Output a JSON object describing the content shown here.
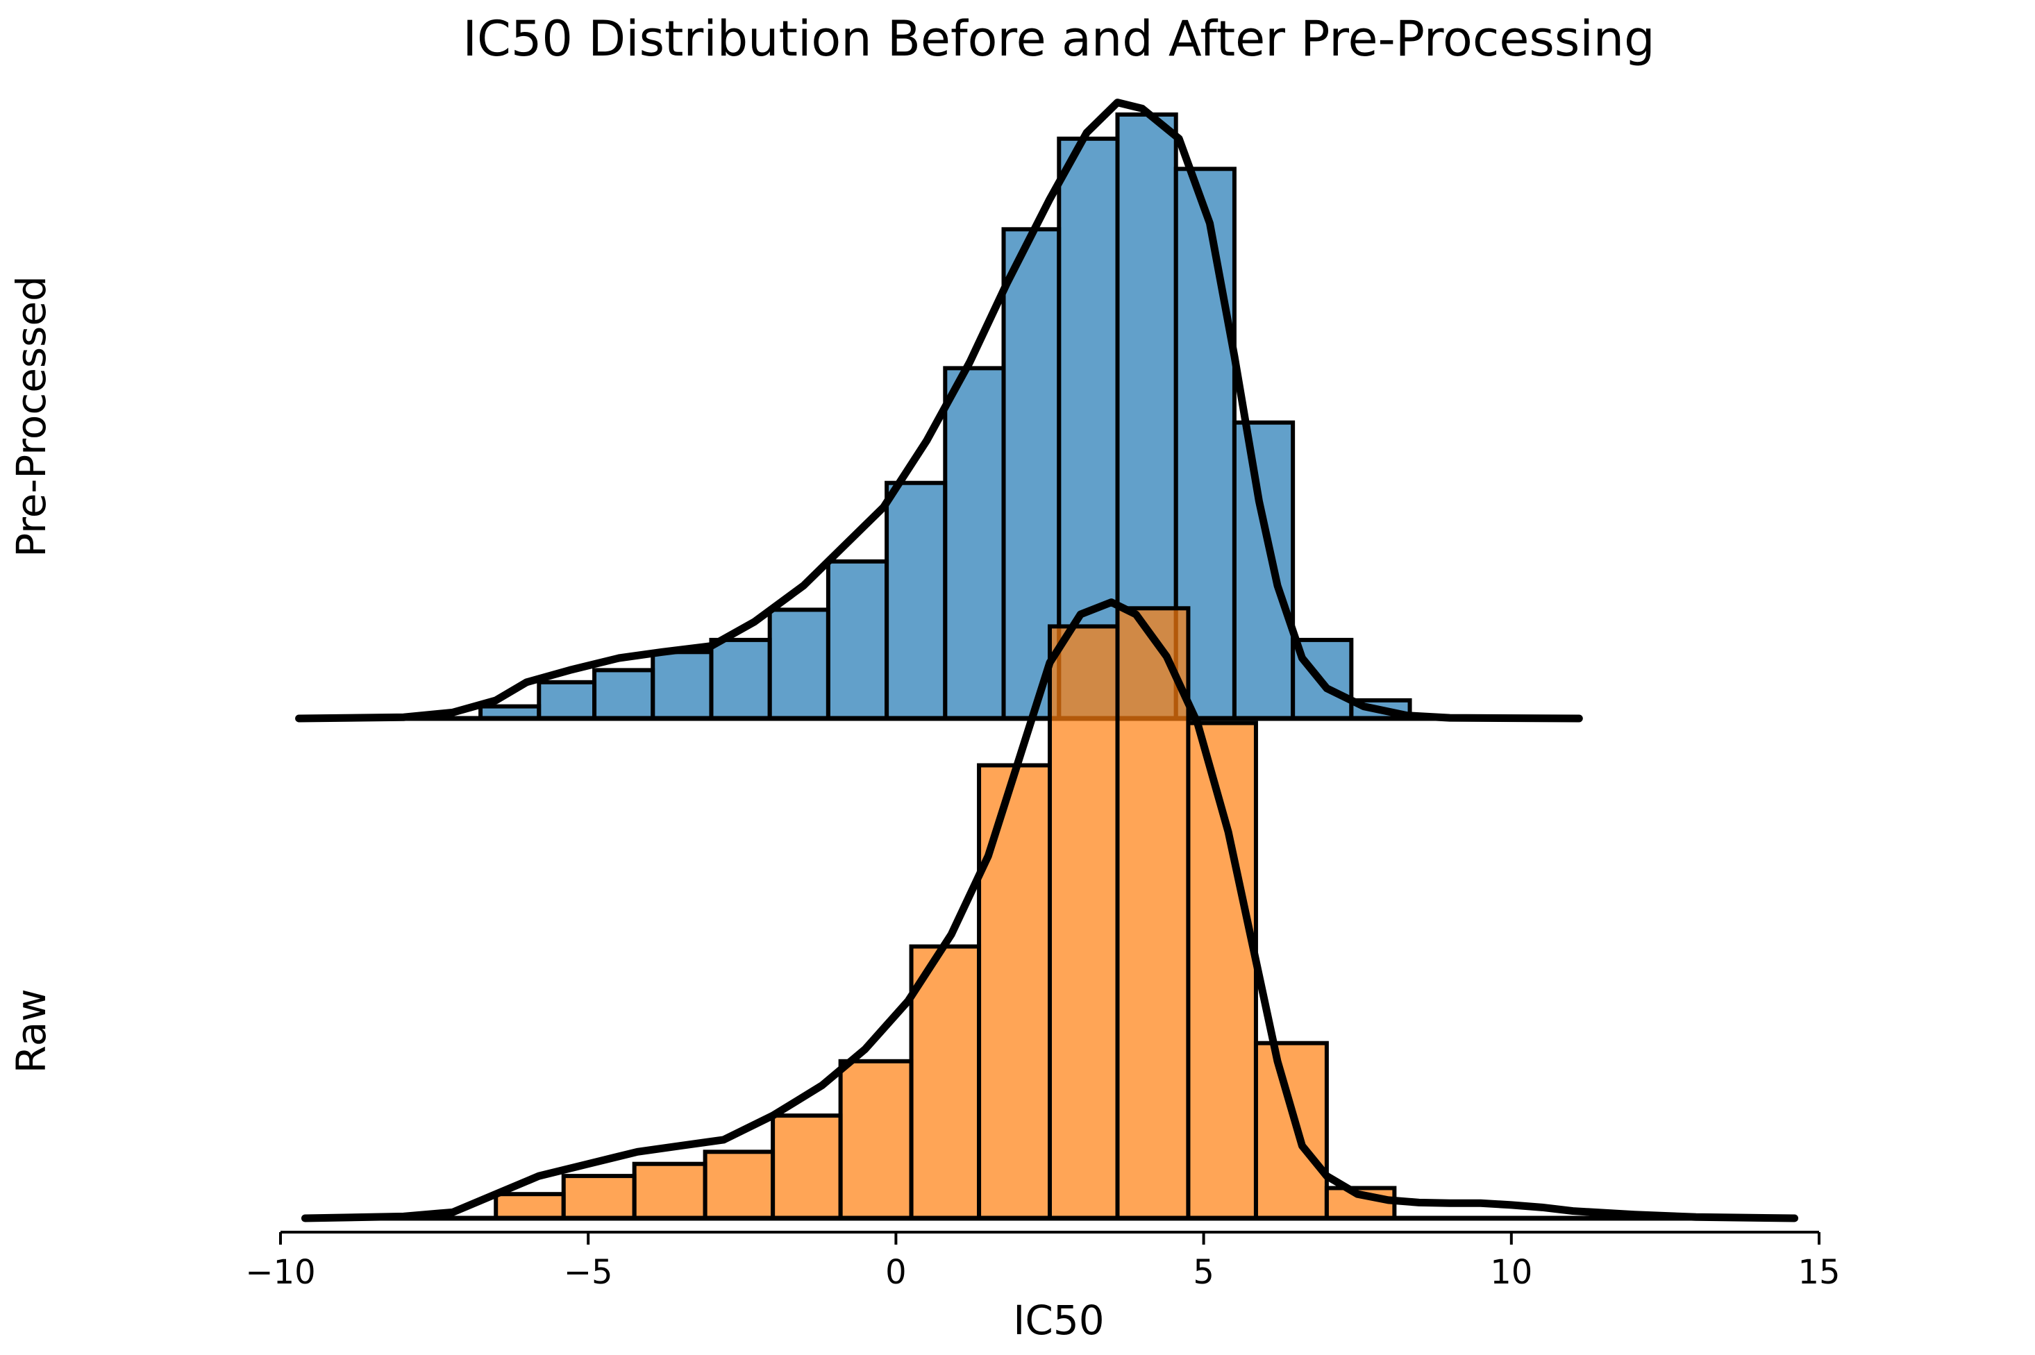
{
  "chart_data": {
    "type": "bar",
    "subtype": "ridgeline histogram with KDE",
    "title": "IC50 Distribution Before and After Pre-Processing",
    "xlabel": "IC50",
    "xlim": [
      -10,
      15
    ],
    "xticks": [
      -10,
      -5,
      0,
      5,
      10,
      15
    ],
    "xtick_labels": [
      "−10",
      "−5",
      "0",
      "5",
      "10",
      "15"
    ],
    "grid": false,
    "legend": "none",
    "ridge_overlap": 0.18,
    "series": [
      {
        "name": "Pre-Processed",
        "color": "#1f77b4",
        "bar_edges": [
          -6.75,
          -5.8,
          -4.9,
          -3.95,
          -3.0,
          -2.05,
          -1.1,
          -0.15,
          0.8,
          1.75,
          2.65,
          3.6,
          4.55,
          5.5,
          6.45,
          7.4,
          8.35
        ],
        "bar_values": [
          0.02,
          0.06,
          0.08,
          0.11,
          0.13,
          0.18,
          0.26,
          0.39,
          0.58,
          0.81,
          0.96,
          1.0,
          0.91,
          0.49,
          0.13,
          0.03
        ],
        "kde_x": [
          -9.7,
          -8.0,
          -7.2,
          -6.5,
          -6.0,
          -5.3,
          -4.5,
          -3.8,
          -3.0,
          -2.3,
          -1.5,
          -0.8,
          -0.2,
          0.5,
          1.2,
          1.8,
          2.5,
          3.1,
          3.6,
          4.0,
          4.6,
          5.1,
          5.5,
          5.9,
          6.2,
          6.6,
          7.0,
          7.6,
          8.3,
          9.0,
          11.1
        ],
        "kde_y": [
          0.0,
          0.002,
          0.01,
          0.03,
          0.06,
          0.08,
          0.1,
          0.11,
          0.12,
          0.16,
          0.22,
          0.29,
          0.35,
          0.46,
          0.59,
          0.72,
          0.86,
          0.97,
          1.02,
          1.01,
          0.96,
          0.82,
          0.6,
          0.36,
          0.22,
          0.1,
          0.05,
          0.02,
          0.005,
          0.001,
          0.0
        ]
      },
      {
        "name": "Raw",
        "color": "#ff7f0e",
        "bar_edges": [
          -6.5,
          -5.4,
          -4.25,
          -3.1,
          -2.0,
          -0.9,
          0.25,
          1.35,
          2.5,
          3.6,
          4.75,
          5.85,
          7.0,
          8.1
        ],
        "bar_values": [
          0.04,
          0.07,
          0.09,
          0.11,
          0.17,
          0.26,
          0.45,
          0.75,
          0.98,
          1.01,
          0.82,
          0.29,
          0.05
        ],
        "kde_x": [
          -9.6,
          -8.0,
          -7.2,
          -6.5,
          -5.8,
          -5.0,
          -4.2,
          -3.5,
          -2.8,
          -2.0,
          -1.2,
          -0.5,
          0.2,
          0.9,
          1.5,
          2.0,
          2.5,
          3.0,
          3.5,
          3.9,
          4.4,
          4.9,
          5.4,
          5.8,
          6.2,
          6.6,
          7.0,
          7.5,
          8.0,
          8.5,
          9.0,
          9.5,
          10.0,
          10.5,
          11.0,
          12.0,
          13.0,
          14.6
        ],
        "kde_y": [
          0.0,
          0.003,
          0.01,
          0.04,
          0.07,
          0.09,
          0.11,
          0.12,
          0.13,
          0.17,
          0.22,
          0.28,
          0.36,
          0.47,
          0.6,
          0.76,
          0.92,
          1.0,
          1.02,
          1.0,
          0.93,
          0.82,
          0.64,
          0.45,
          0.26,
          0.12,
          0.07,
          0.04,
          0.03,
          0.026,
          0.025,
          0.025,
          0.022,
          0.018,
          0.012,
          0.006,
          0.002,
          0.0
        ]
      }
    ]
  }
}
